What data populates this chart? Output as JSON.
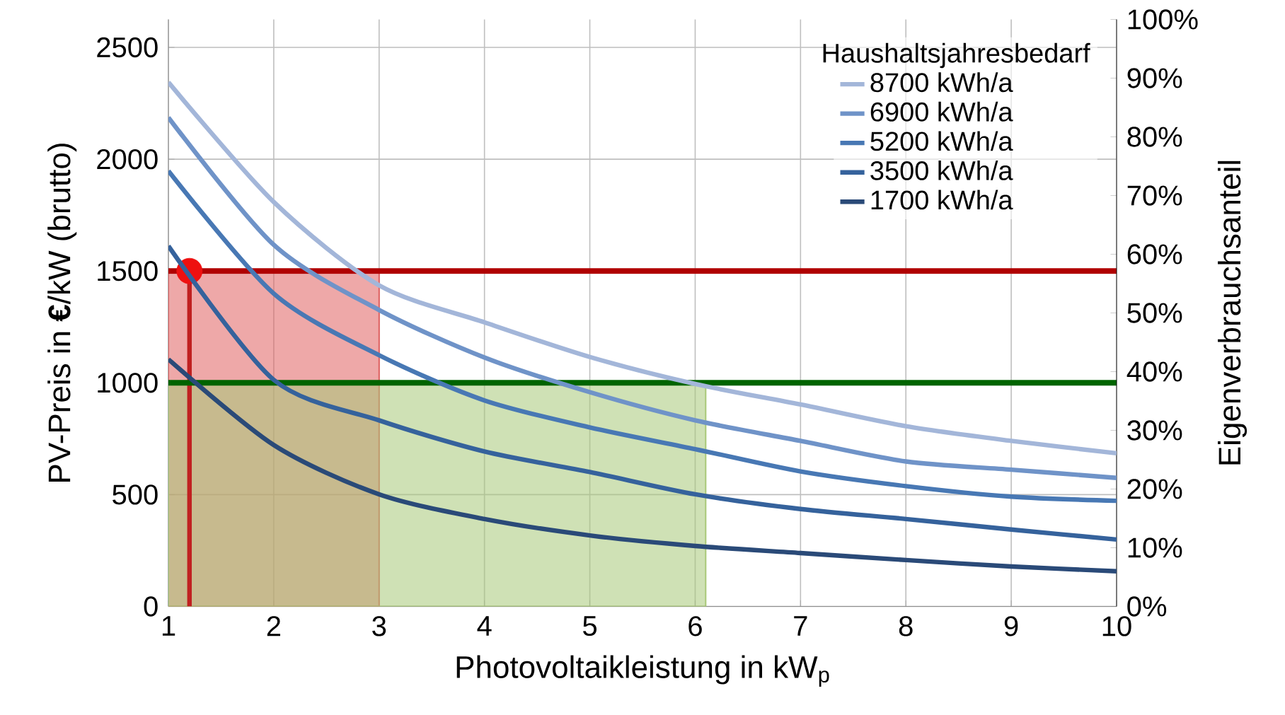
{
  "chart_data": {
    "type": "line",
    "xlabel": "Photovoltaikleistung in kW$_{p}$",
    "ylabel": "PV-Preis in **€**/kW (brutto)",
    "y2label": "Eigenverbrauchsanteil",
    "legend_title": "Haushaltsjahresbedarf",
    "x": [
      1,
      2,
      3,
      4,
      5,
      6,
      7,
      8,
      9,
      10
    ],
    "xlim": [
      1,
      10
    ],
    "xticks": [
      1,
      2,
      3,
      4,
      5,
      6,
      7,
      8,
      9,
      10
    ],
    "ylim": [
      0,
      2625
    ],
    "yticks": [
      0,
      500,
      1000,
      1500,
      2000,
      2500
    ],
    "y2lim": [
      0,
      100
    ],
    "y2ticks": [
      {
        "value": 0,
        "label": "0%"
      },
      {
        "value": 10,
        "label": "10%"
      },
      {
        "value": 20,
        "label": "20%"
      },
      {
        "value": 30,
        "label": "30%"
      },
      {
        "value": 40,
        "label": "40%"
      },
      {
        "value": 50,
        "label": "50%"
      },
      {
        "value": 60,
        "label": "60%"
      },
      {
        "value": 70,
        "label": "70%"
      },
      {
        "value": 80,
        "label": "80%"
      },
      {
        "value": 90,
        "label": "90%"
      },
      {
        "value": 100,
        "label": "100%"
      }
    ],
    "grid": true,
    "legend": "top right",
    "marker": "none",
    "line_style": "solid",
    "ref_lines": [
      {
        "axis": "y",
        "value": 1500,
        "color": "#b00000"
      },
      {
        "axis": "y",
        "value": 1000,
        "color": "#006400"
      }
    ],
    "series": [
      {
        "type": "area",
        "axis": "y",
        "color": "#e06060",
        "x": [
          1,
          3
        ],
        "values": [
          1500,
          1500
        ]
      },
      {
        "type": "area",
        "axis": "y",
        "color": "#a8c878",
        "x": [
          1,
          6.1
        ],
        "values": [
          1000,
          1000
        ]
      },
      {
        "type": "line",
        "axis": "y",
        "color": "#c02020",
        "x": [
          1.2,
          1.2
        ],
        "values": [
          1500,
          0
        ]
      },
      {
        "type": "scatter",
        "axis": "y",
        "color": "#ee1010",
        "x": [
          1.2
        ],
        "values": [
          1500
        ]
      },
      {
        "name": "8700 kWh/a",
        "axis": "y2",
        "color": "#a3b6d9",
        "values": [
          89.3,
          68.9,
          54.7,
          48.4,
          42.5,
          37.9,
          34.4,
          30.7,
          28.2,
          26.1
        ]
      },
      {
        "name": "6900 kWh/a",
        "axis": "y2",
        "color": "#6f93c8",
        "values": [
          83.3,
          61.6,
          50.5,
          42.4,
          36.5,
          31.7,
          28.2,
          24.7,
          23.3,
          21.9
        ]
      },
      {
        "name": "5200 kWh/a",
        "axis": "y2",
        "color": "#4878b4",
        "values": [
          74.2,
          53.3,
          42.8,
          35.1,
          30.5,
          26.8,
          23.0,
          20.5,
          18.7,
          18.0
        ]
      },
      {
        "name": "3500 kWh/a",
        "axis": "y2",
        "color": "#35629c",
        "values": [
          61.4,
          38.6,
          31.7,
          26.4,
          22.9,
          19.1,
          16.6,
          14.9,
          13.1,
          11.4
        ]
      },
      {
        "name": "1700 kWh/a",
        "axis": "y2",
        "color": "#2a4a78",
        "values": [
          42.1,
          27.5,
          19.1,
          14.9,
          12.1,
          10.3,
          9.1,
          7.9,
          6.8,
          6.0
        ]
      }
    ]
  }
}
